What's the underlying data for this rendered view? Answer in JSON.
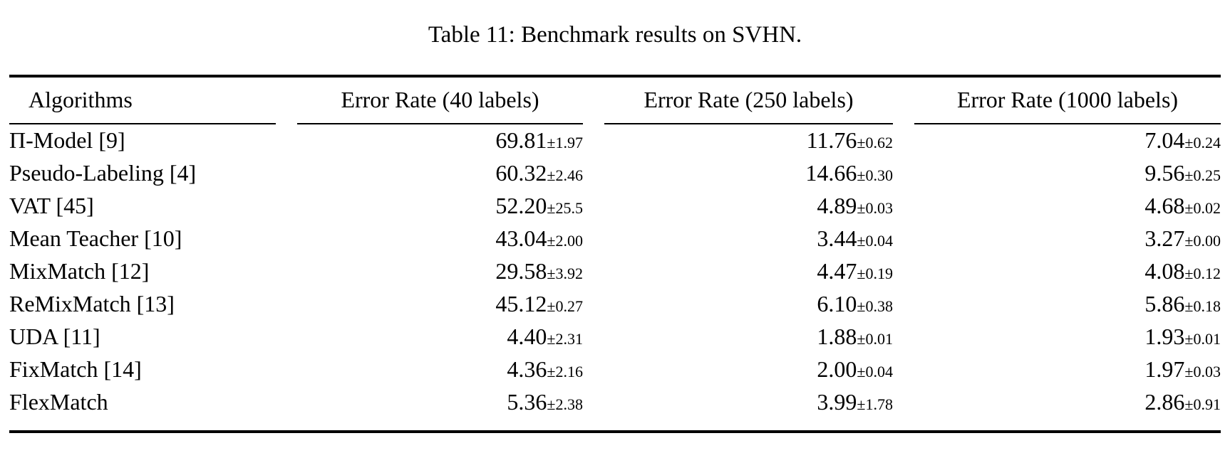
{
  "page": {
    "background_color": "#ffffff",
    "text_color": "#000000"
  },
  "caption": "Table 11: Benchmark results on SVHN.",
  "table": {
    "headers": [
      "Algorithms",
      "Error Rate (40 labels)",
      "Error Rate (250 labels)",
      "Error Rate (1000 labels)"
    ],
    "rows": [
      {
        "algorithm": "Π-Model [9]",
        "e40": "69.81",
        "e40_std": "±1.97",
        "e250": "11.76",
        "e250_std": "±0.62",
        "e1000": "7.04",
        "e1000_std": "±0.24"
      },
      {
        "algorithm": "Pseudo-Labeling [4]",
        "e40": "60.32",
        "e40_std": "±2.46",
        "e250": "14.66",
        "e250_std": "±0.30",
        "e1000": "9.56",
        "e1000_std": "±0.25"
      },
      {
        "algorithm": "VAT [45]",
        "e40": "52.20",
        "e40_std": "±25.5",
        "e250": "4.89",
        "e250_std": "±0.03",
        "e1000": "4.68",
        "e1000_std": "±0.02"
      },
      {
        "algorithm": "Mean Teacher [10]",
        "e40": "43.04",
        "e40_std": "±2.00",
        "e250": "3.44",
        "e250_std": "±0.04",
        "e1000": "3.27",
        "e1000_std": "±0.00"
      },
      {
        "algorithm": "MixMatch [12]",
        "e40": "29.58",
        "e40_std": "±3.92",
        "e250": "4.47",
        "e250_std": "±0.19",
        "e1000": "4.08",
        "e1000_std": "±0.12"
      },
      {
        "algorithm": "ReMixMatch [13]",
        "e40": "45.12",
        "e40_std": "±0.27",
        "e250": "6.10",
        "e250_std": "±0.38",
        "e1000": "5.86",
        "e1000_std": "±0.18"
      },
      {
        "algorithm": "UDA [11]",
        "e40": "4.40",
        "e40_std": "±2.31",
        "e250": "1.88",
        "e250_std": "±0.01",
        "e1000": "1.93",
        "e1000_std": "±0.01"
      },
      {
        "algorithm": "FixMatch [14]",
        "e40": "4.36",
        "e40_std": "±2.16",
        "e250": "2.00",
        "e250_std": "±0.04",
        "e1000": "1.97",
        "e1000_std": "±0.03"
      },
      {
        "algorithm": "FlexMatch",
        "e40": "5.36",
        "e40_std": "±2.38",
        "e250": "3.99",
        "e250_std": "±1.78",
        "e1000": "2.86",
        "e1000_std": "±0.91"
      }
    ]
  }
}
